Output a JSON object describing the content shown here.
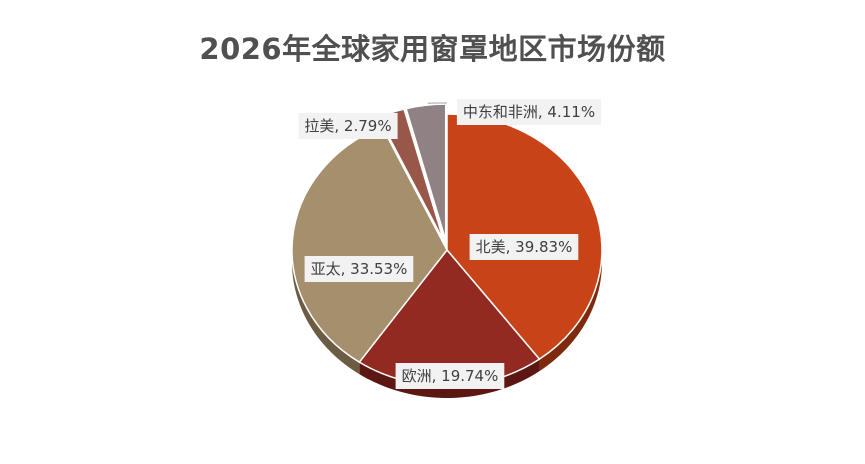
{
  "chart_data": {
    "type": "pie",
    "title": "2026年全球家用窗罩地区市场份额",
    "categories": [
      "北美",
      "欧洲",
      "亚太",
      "拉美",
      "中东和非洲"
    ],
    "values": [
      39.83,
      19.74,
      33.53,
      2.79,
      4.11
    ],
    "data_labels": [
      "北美, 39.83%",
      "欧洲, 19.74%",
      "亚太, 33.53%",
      "拉美, 2.79%",
      "中东和非洲, 4.11%"
    ],
    "colors": [
      "#c84418",
      "#922a22",
      "#a58f6d",
      "#99574a",
      "#8f8184"
    ],
    "side_colors": [
      "#7f2a0d",
      "#5c1712",
      "#6d5c44",
      "#5e352c",
      "#5b5154"
    ],
    "legend": "none",
    "start_angle_deg": 0,
    "direction": "clockwise"
  }
}
